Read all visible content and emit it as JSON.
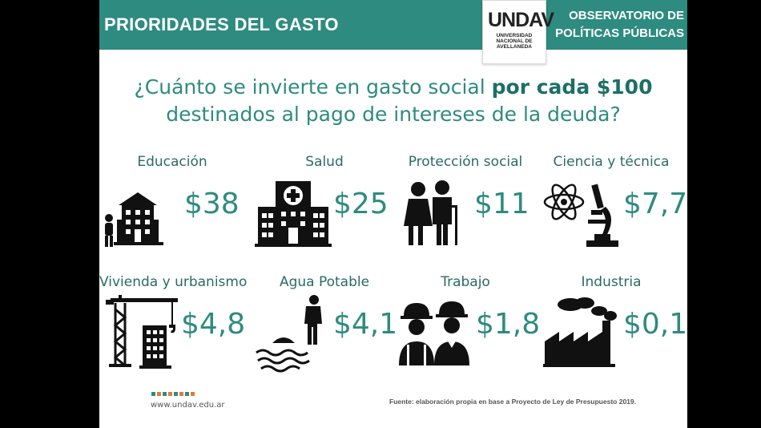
{
  "header": {
    "title": "PRIORIDADES DEL GASTO",
    "logo_text": "UNDAV",
    "logo_sub_1": "UNIVERSIDAD",
    "logo_sub_2": "NACIONAL DE",
    "logo_sub_3": "AVELLANEDA",
    "observatory_line1": "OBSERVATORIO DE",
    "observatory_line2": "POLÍTICAS PÚBLICAS"
  },
  "question": {
    "part1": "¿Cuánto se invierte en gasto social ",
    "highlight": "por cada $100",
    "part2": "destinados al pago de intereses de la deuda?"
  },
  "items": [
    {
      "label": "Educación",
      "value": "$38",
      "icon": "school-icon"
    },
    {
      "label": "Salud",
      "value": "$25",
      "icon": "hospital-icon"
    },
    {
      "label": "Protección social",
      "value": "$11",
      "icon": "elderly-couple-icon"
    },
    {
      "label": "Ciencia y técnica",
      "value": "$7,7",
      "icon": "atom-microscope-icon"
    },
    {
      "label": "Vivienda y urbanismo",
      "value": "$4,8",
      "icon": "crane-building-icon"
    },
    {
      "label": "Agua Potable",
      "value": "$4,1",
      "icon": "water-worker-icon"
    },
    {
      "label": "Trabajo",
      "value": "$1,8",
      "icon": "workers-icon"
    },
    {
      "label": "Industria",
      "value": "$0,1",
      "icon": "factory-icon"
    }
  ],
  "colors": {
    "accent": "#2e8b80",
    "bar": "#2e8b80"
  },
  "footer": {
    "website": "www.undav.edu.ar",
    "source": "Fuente: elaboración propia en base a Proyecto de Ley de Presupuesto 2019."
  }
}
